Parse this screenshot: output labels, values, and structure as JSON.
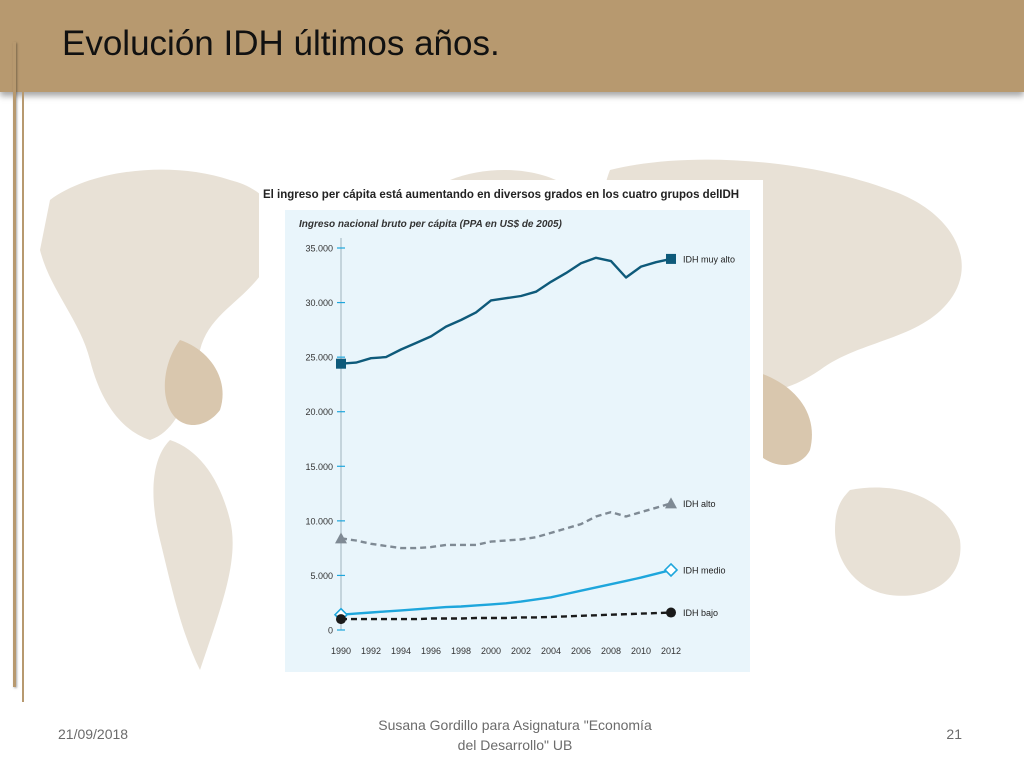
{
  "slide": {
    "title": "Evolución IDH últimos años."
  },
  "chart_data": {
    "type": "line",
    "title": "El ingreso per cápita está aumentando en diversos grados en los cuatro grupos delIDH",
    "subtitle": "Ingreso nacional bruto per cápita (PPA en US$ de 2005)",
    "x": [
      1990,
      1991,
      1992,
      1993,
      1994,
      1995,
      1996,
      1997,
      1998,
      1999,
      2000,
      2001,
      2002,
      2003,
      2004,
      2005,
      2006,
      2007,
      2008,
      2009,
      2010,
      2011,
      2012
    ],
    "x_ticks": [
      "1990",
      "1992",
      "1994",
      "1996",
      "1998",
      "2000",
      "2002",
      "2004",
      "2006",
      "2008",
      "2010",
      "2012"
    ],
    "y_ticks": [
      "0",
      "5.000",
      "10.000",
      "15.000",
      "20.000",
      "25.000",
      "30.000",
      "35.000"
    ],
    "ylim": [
      0,
      35000
    ],
    "xlim": [
      1990,
      2012
    ],
    "grid": false,
    "series": [
      {
        "name": "IDH muy alto",
        "color": "#0e5a7a",
        "dash": "solid",
        "marker": "square",
        "values": [
          24400,
          24500,
          24900,
          25000,
          25700,
          26300,
          26900,
          27800,
          28400,
          29100,
          30200,
          30400,
          30600,
          31000,
          31900,
          32700,
          33600,
          34100,
          33800,
          32300,
          33300,
          33700,
          34000
        ]
      },
      {
        "name": "IDH alto",
        "color": "#7f8a94",
        "dash": "dashed",
        "marker": "triangle",
        "values": [
          8400,
          8200,
          7900,
          7700,
          7500,
          7500,
          7600,
          7800,
          7800,
          7800,
          8100,
          8200,
          8300,
          8500,
          8900,
          9300,
          9700,
          10400,
          10800,
          10400,
          10800,
          11200,
          11600
        ]
      },
      {
        "name": "IDH medio",
        "color": "#1ea6dc",
        "dash": "solid",
        "marker": "diamond",
        "values": [
          1400,
          1500,
          1600,
          1700,
          1800,
          1900,
          2000,
          2100,
          2150,
          2250,
          2350,
          2450,
          2600,
          2800,
          3000,
          3300,
          3600,
          3900,
          4200,
          4500,
          4800,
          5150,
          5500
        ]
      },
      {
        "name": "IDH bajo",
        "color": "#1a1a1a",
        "dash": "dashed",
        "marker": "circle",
        "values": [
          1000,
          1000,
          1000,
          1000,
          1000,
          1000,
          1050,
          1050,
          1050,
          1100,
          1100,
          1100,
          1150,
          1150,
          1200,
          1250,
          1300,
          1350,
          1400,
          1450,
          1500,
          1550,
          1600
        ]
      }
    ]
  },
  "footer": {
    "date": "21/09/2018",
    "author_line1": "Susana Gordillo para Asignatura \"Economía",
    "author_line2": "del Desarrollo\" UB",
    "page_number": "21"
  }
}
